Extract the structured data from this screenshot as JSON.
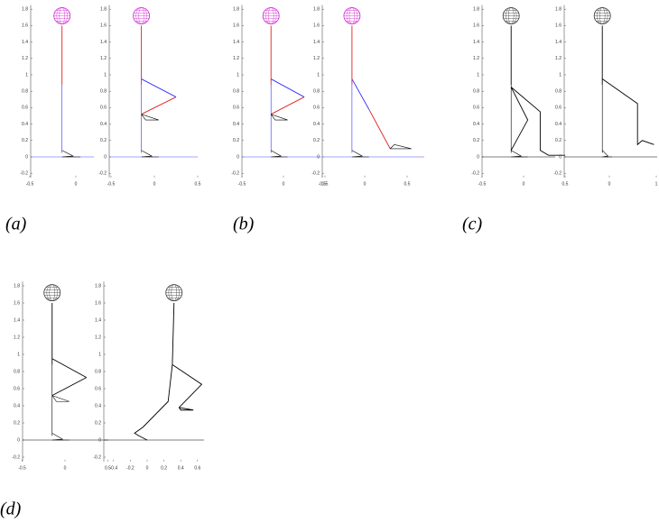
{
  "captions": [
    "(a)",
    "(b)",
    "(c)",
    "(d)"
  ],
  "panels": [
    {
      "xticks": [
        -0.5,
        0
      ],
      "yticks": [
        1.8,
        1.6,
        1.4,
        1.2,
        1,
        0.8,
        0.6,
        0.4,
        0.2,
        0,
        -0.2
      ]
    },
    {
      "xticks": [
        -0.5,
        0,
        0.5
      ],
      "yticks": [
        1.8,
        1.6,
        1.4,
        1.2,
        1,
        0.8,
        0.6,
        0.4,
        0.2,
        0,
        -0.2
      ]
    },
    {
      "xticks": [
        -0.5,
        0,
        0.5
      ],
      "yticks": [
        1.8,
        1.6,
        1.4,
        1.2,
        1,
        0.8,
        0.6,
        0.4,
        0.2,
        0,
        -0.2
      ]
    },
    {
      "xticks": [
        -0.5,
        0,
        0.5
      ],
      "yticks": [
        1.8,
        1.6,
        1.4,
        1.2,
        1,
        0.8,
        0.6,
        0.4,
        0.2,
        0,
        -0.2
      ]
    },
    {
      "xticks": [
        -0.5,
        0,
        0.5
      ],
      "yticks": [
        1.8,
        1.6,
        1.4,
        1.2,
        1,
        0.8,
        0.6,
        0.4,
        0.2,
        0,
        -0.2
      ]
    },
    {
      "xticks": [
        0,
        1
      ],
      "yticks": [
        1.8,
        1.6,
        1.4,
        1.2,
        1,
        0.8,
        0.6,
        0.4,
        0.2,
        0,
        -0.2
      ]
    },
    {
      "xticks": [
        -0.5,
        0,
        0.5
      ],
      "yticks": [
        1.8,
        1.6,
        1.4,
        1.2,
        1,
        0.8,
        0.6,
        0.4,
        0.2,
        0,
        -0.2
      ]
    },
    {
      "xticks": [
        -0.4,
        -0.2,
        0,
        0.2,
        0.4,
        0.6
      ],
      "yticks": [
        1.8,
        1.6,
        1.4,
        1.2,
        1,
        0.8,
        0.6,
        0.4,
        0.2,
        0,
        -0.2
      ]
    }
  ]
}
